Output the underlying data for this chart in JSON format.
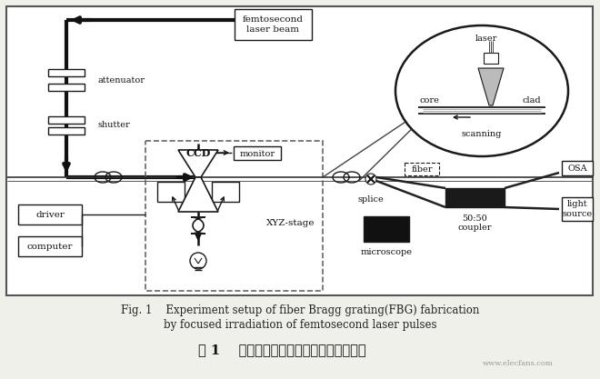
{
  "bg_color": "#f0f0eb",
  "diagram_bg": "#ffffff",
  "fig_caption_line1": "Fig. 1    Experiment setup of fiber Bragg grating(FBG) fabrication",
  "fig_caption_line2": "by focused irradiation of femtosecond laser pulses",
  "fig_caption_cn": "图 1    飞秒激光直写光纤光栅的实验装置图",
  "watermark": "www.elecfans.com",
  "labels": {
    "femtosecond": "femtosecond\nlaser beam",
    "attenuator": "attenuator",
    "shutter": "shutter",
    "CCD": "CCD",
    "monitor": "monitor",
    "XYZ_stage": "XYZ-stage",
    "driver": "driver",
    "computer": "computer",
    "fiber": "fiber",
    "splice": "splice",
    "microscope": "microscope",
    "coupler": "50:50\ncoupler",
    "OSA": "OSA",
    "light_source": "light\nsource",
    "laser": "laser",
    "core": "core",
    "clad": "clad",
    "scanning": "scanning"
  }
}
